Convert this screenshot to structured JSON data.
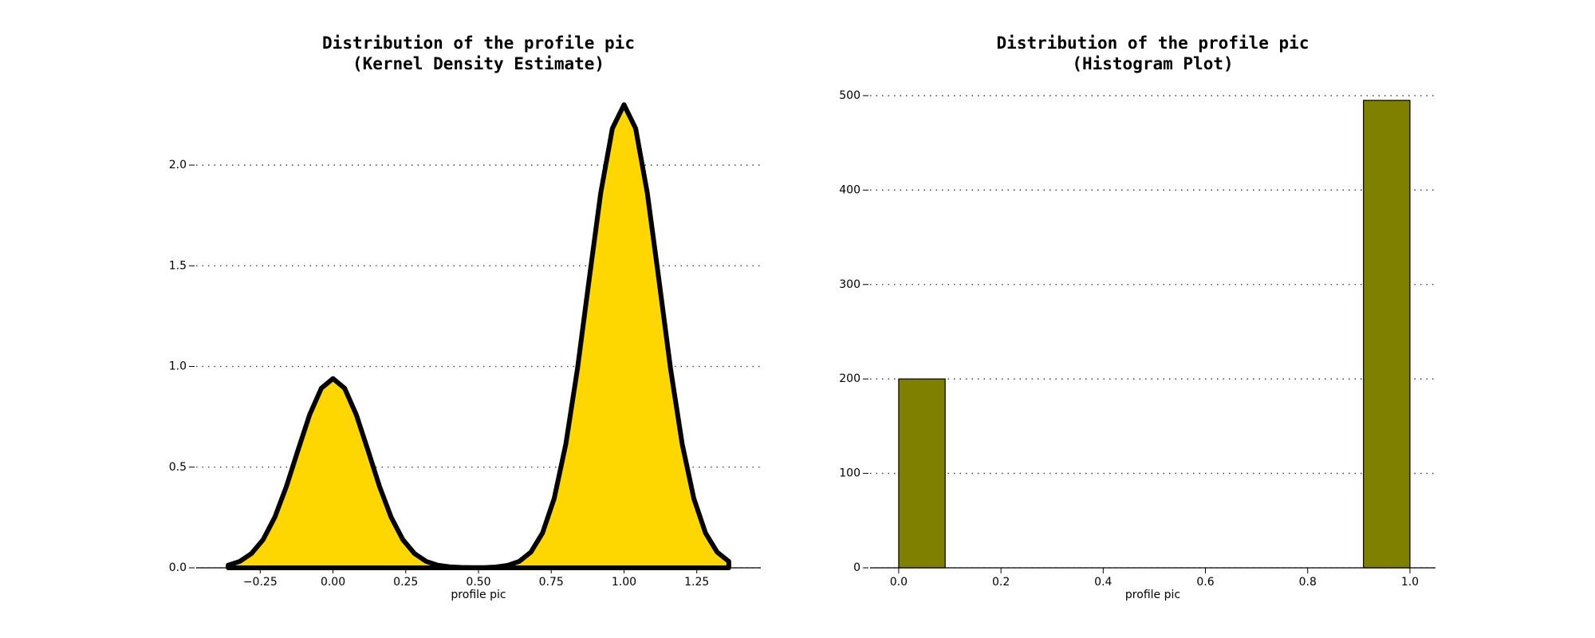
{
  "chart_data": [
    {
      "type": "area",
      "title": "Distribution of the profile pic",
      "subtitle": "(Kernel Density Estimate)",
      "xlabel": "profile pic",
      "color": "#FFD700",
      "line_color": "#000000",
      "x": [
        -0.36,
        -0.32,
        -0.28,
        -0.24,
        -0.2,
        -0.16,
        -0.12,
        -0.08,
        -0.04,
        0,
        0.04,
        0.08,
        0.12,
        0.16,
        0.2,
        0.24,
        0.28,
        0.32,
        0.36,
        0.4,
        0.44,
        0.48,
        0.52,
        0.56,
        0.6,
        0.64,
        0.68,
        0.72,
        0.76,
        0.8,
        0.84,
        0.88,
        0.92,
        0.96,
        1,
        1.04,
        1.08,
        1.12,
        1.16,
        1.2,
        1.24,
        1.28,
        1.32,
        1.36
      ],
      "values": [
        0.013,
        0.032,
        0.071,
        0.14,
        0.251,
        0.404,
        0.585,
        0.761,
        0.892,
        0.94,
        0.892,
        0.761,
        0.585,
        0.404,
        0.251,
        0.14,
        0.071,
        0.032,
        0.013,
        0.005,
        0.002,
        0.001,
        0.001,
        0.004,
        0.012,
        0.032,
        0.078,
        0.173,
        0.344,
        0.614,
        0.988,
        1.43,
        1.862,
        2.182,
        2.3,
        2.182,
        1.862,
        1.43,
        0.988,
        0.614,
        0.344,
        0.173,
        0.078,
        0.032
      ],
      "xlim": [
        -0.47,
        1.47
      ],
      "ylim": [
        0,
        2.42
      ],
      "xticks": [
        {
          "value": -0.25,
          "label": "−0.25"
        },
        {
          "value": 0,
          "label": "0.00"
        },
        {
          "value": 0.25,
          "label": "0.25"
        },
        {
          "value": 0.5,
          "label": "0.50"
        },
        {
          "value": 0.75,
          "label": "0.75"
        },
        {
          "value": 1,
          "label": "1.00"
        },
        {
          "value": 1.25,
          "label": "1.25"
        }
      ],
      "yticks": [
        {
          "value": 0,
          "label": "0.0"
        },
        {
          "value": 0.5,
          "label": "0.5"
        },
        {
          "value": 1,
          "label": "1.0"
        },
        {
          "value": 1.5,
          "label": "1.5"
        },
        {
          "value": 2,
          "label": "2.0"
        }
      ],
      "grid": true
    },
    {
      "type": "histogram",
      "title": "Distribution of the profile pic",
      "subtitle": "(Histogram Plot)",
      "xlabel": "profile pic",
      "color": "#808000",
      "bins": [
        0,
        0.0909,
        0.1818,
        0.2727,
        0.3636,
        0.4545,
        0.5455,
        0.6364,
        0.7273,
        0.8182,
        0.9091,
        1
      ],
      "counts": [
        200,
        0,
        0,
        0,
        0,
        0,
        0,
        0,
        0,
        0,
        495
      ],
      "xlim": [
        -0.056,
        1.05
      ],
      "ylim": [
        0,
        505
      ],
      "xticks": [
        {
          "value": 0,
          "label": "0.0"
        },
        {
          "value": 0.2,
          "label": "0.2"
        },
        {
          "value": 0.4,
          "label": "0.4"
        },
        {
          "value": 0.6,
          "label": "0.6"
        },
        {
          "value": 0.8,
          "label": "0.8"
        },
        {
          "value": 1,
          "label": "1.0"
        }
      ],
      "yticks": [
        0,
        100,
        200,
        300,
        400,
        500
      ],
      "grid": true
    }
  ]
}
